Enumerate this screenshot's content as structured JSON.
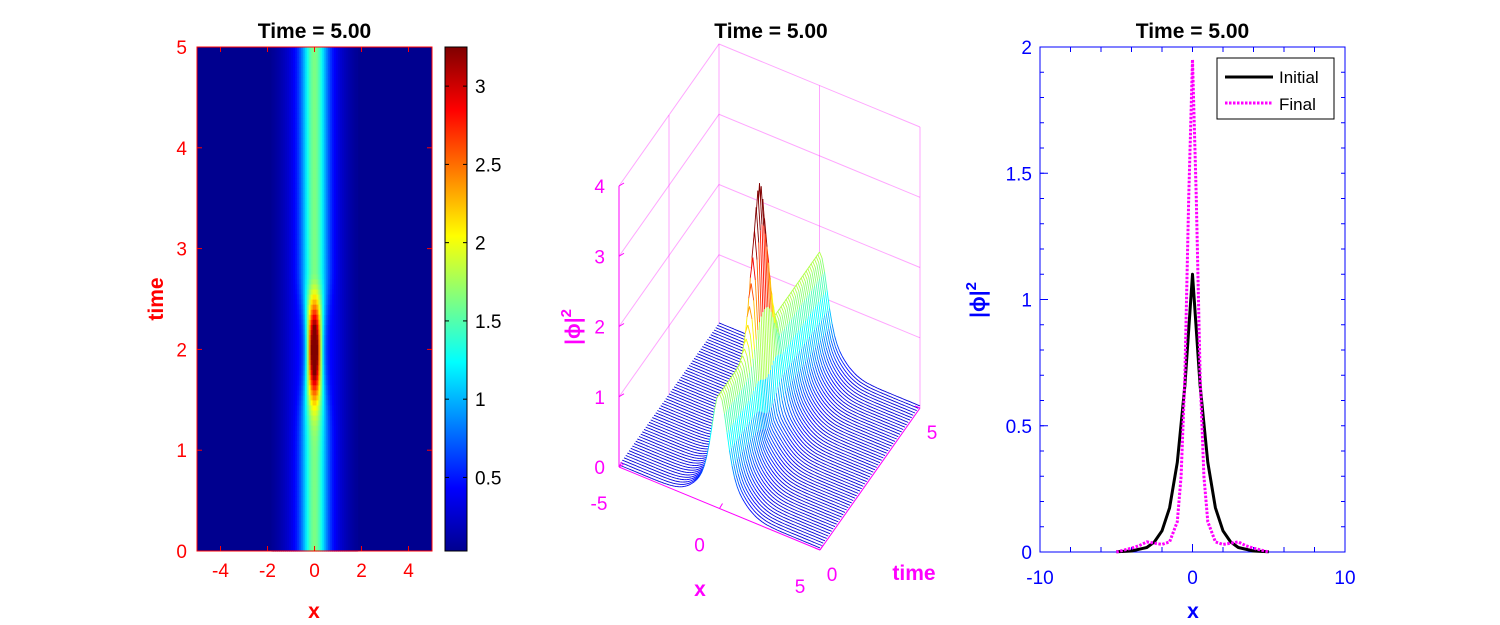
{
  "colors": {
    "p1_axis": "#ff0000",
    "p2_axis": "#ff00ff",
    "p3_axis": "#0000ff",
    "initial": "#000000",
    "final": "#ff00ff"
  },
  "chart_data": [
    {
      "type": "heatmap",
      "title": "Time = 5.00",
      "xlabel": "x",
      "ylabel": "time",
      "xlim": [
        -5,
        5
      ],
      "ylim": [
        0,
        5
      ],
      "xticks": [
        "-4",
        "-2",
        "0",
        "2",
        "4"
      ],
      "yticks": [
        "0",
        "1",
        "2",
        "3",
        "4",
        "5"
      ],
      "colormap": "jet",
      "colorbar": {
        "range": [
          0.03,
          3.25
        ],
        "ticks": [
          "0.5",
          "1",
          "1.5",
          "2",
          "2.5",
          "3"
        ]
      },
      "peak": {
        "x": 0,
        "time": 2.0,
        "value": 3.2
      },
      "axis_color": "red"
    },
    {
      "type": "surface",
      "title": "Time = 5.00",
      "xlabel": "x",
      "ylabel": "time",
      "zlabel": "|ϕ|",
      "zlabel_sup": "2",
      "xlim": [
        -5,
        5
      ],
      "ylim": [
        0,
        5
      ],
      "zlim": [
        0,
        4
      ],
      "xticks": [
        "-5",
        "0",
        "5"
      ],
      "yticks": [
        "0",
        "5"
      ],
      "zticks": [
        "0",
        "1",
        "2",
        "3",
        "4"
      ],
      "peak": {
        "x": 0,
        "time": 2.0,
        "value": 3.2
      },
      "axis_color": "magenta"
    },
    {
      "type": "line",
      "title": "Time = 5.00",
      "xlabel": "x",
      "ylabel": "|ϕ|",
      "ylabel_sup": "2",
      "xlim": [
        -10,
        10
      ],
      "ylim": [
        0,
        2
      ],
      "xticks": [
        "-10",
        "0",
        "10"
      ],
      "yticks": [
        "0",
        "0.5",
        "1",
        "1.5",
        "2"
      ],
      "legend": "top-right",
      "axis_color": "blue",
      "series": [
        {
          "name": "Initial",
          "color": "#000000",
          "style": "solid",
          "x": [
            -5,
            -4,
            -3,
            -2.5,
            -2,
            -1.5,
            -1,
            -0.5,
            0,
            0.5,
            1,
            1.5,
            2,
            2.5,
            3,
            4,
            5
          ],
          "values": [
            0.001,
            0.004,
            0.018,
            0.04,
            0.084,
            0.175,
            0.355,
            0.66,
            1.1,
            0.66,
            0.355,
            0.175,
            0.084,
            0.04,
            0.018,
            0.004,
            0.001
          ]
        },
        {
          "name": "Final",
          "color": "#ff00ff",
          "style": "dotted",
          "x": [
            -5,
            -4,
            -3.5,
            -3,
            -2.5,
            -2,
            -1.5,
            -1,
            -0.75,
            -0.5,
            -0.25,
            0,
            0.25,
            0.5,
            0.75,
            1,
            1.5,
            2,
            2.5,
            3,
            3.5,
            4,
            5
          ],
          "values": [
            0.0,
            0.015,
            0.025,
            0.04,
            0.035,
            0.03,
            0.04,
            0.12,
            0.3,
            0.7,
            1.4,
            1.95,
            1.4,
            0.7,
            0.3,
            0.12,
            0.04,
            0.03,
            0.035,
            0.04,
            0.025,
            0.015,
            0.0
          ]
        }
      ]
    }
  ]
}
